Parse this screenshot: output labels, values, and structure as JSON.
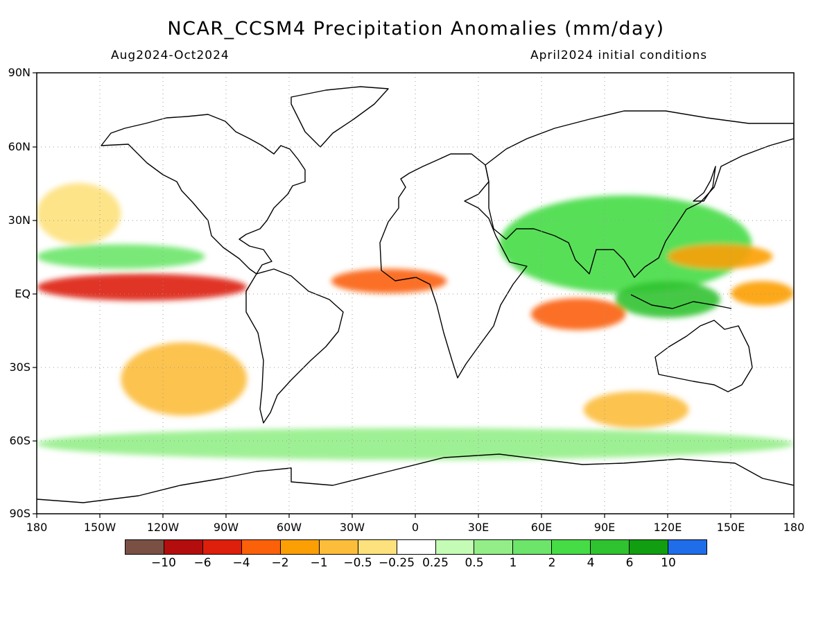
{
  "title": "NCAR_CCSM4 Precipitation Anomalies (mm/day)",
  "period": "Aug2024-Oct2024",
  "initial_conditions": "April2024 initial conditions",
  "lat_labels": [
    "90N",
    "60N",
    "30N",
    "EQ",
    "30S",
    "60S",
    "90S"
  ],
  "lon_labels": [
    "180",
    "150W",
    "120W",
    "90W",
    "60W",
    "30W",
    "0",
    "30E",
    "60E",
    "90E",
    "120E",
    "150E",
    "180"
  ],
  "colorbar": {
    "colors": [
      "#7a5045",
      "#b40d0d",
      "#dd1f0b",
      "#fb6109",
      "#fc9f05",
      "#fcbd3b",
      "#fde17c",
      "#ffffff",
      "#c4fbb5",
      "#93ee88",
      "#6ce56a",
      "#46dc46",
      "#30c330",
      "#119f11",
      "#1f6de9"
    ],
    "tick_labels": [
      "−10",
      "−6",
      "−4",
      "−2",
      "−1",
      "−0.5",
      "−0.25",
      "0.25",
      "0.5",
      "1",
      "2",
      "4",
      "6",
      "10"
    ]
  },
  "chart_data": {
    "type": "heatmap",
    "variable": "Precipitation Anomalies",
    "units": "mm/day",
    "xlim": [
      -180,
      180
    ],
    "ylim": [
      -90,
      90
    ],
    "grid": true,
    "levels": [
      -10,
      -6,
      -4,
      -2,
      -1,
      -0.5,
      -0.25,
      0.25,
      0.5,
      1,
      2,
      4,
      6,
      10
    ],
    "anomaly_regions": [
      {
        "lon": [
          -180,
          -80
        ],
        "lat": [
          -3,
          8
        ],
        "value": -6
      },
      {
        "lon": [
          -180,
          -100
        ],
        "lat": [
          10,
          20
        ],
        "value": 1
      },
      {
        "lon": [
          -180,
          -140
        ],
        "lat": [
          20,
          45
        ],
        "value": -0.5
      },
      {
        "lon": [
          -140,
          -80
        ],
        "lat": [
          -50,
          -20
        ],
        "value": -1
      },
      {
        "lon": [
          -40,
          15
        ],
        "lat": [
          0,
          10
        ],
        "value": -4
      },
      {
        "lon": [
          40,
          160
        ],
        "lat": [
          0,
          40
        ],
        "value": 2
      },
      {
        "lon": [
          55,
          100
        ],
        "lat": [
          -15,
          -2
        ],
        "value": -4
      },
      {
        "lon": [
          120,
          170
        ],
        "lat": [
          10,
          20
        ],
        "value": -2
      },
      {
        "lon": [
          150,
          180
        ],
        "lat": [
          -5,
          5
        ],
        "value": -2
      },
      {
        "lon": [
          95,
          145
        ],
        "lat": [
          -10,
          5
        ],
        "value": 4
      },
      {
        "lon": [
          80,
          130
        ],
        "lat": [
          -55,
          -40
        ],
        "value": -1
      },
      {
        "lon": [
          -180,
          180
        ],
        "lat": [
          -68,
          -55
        ],
        "value": 0.5
      }
    ]
  }
}
